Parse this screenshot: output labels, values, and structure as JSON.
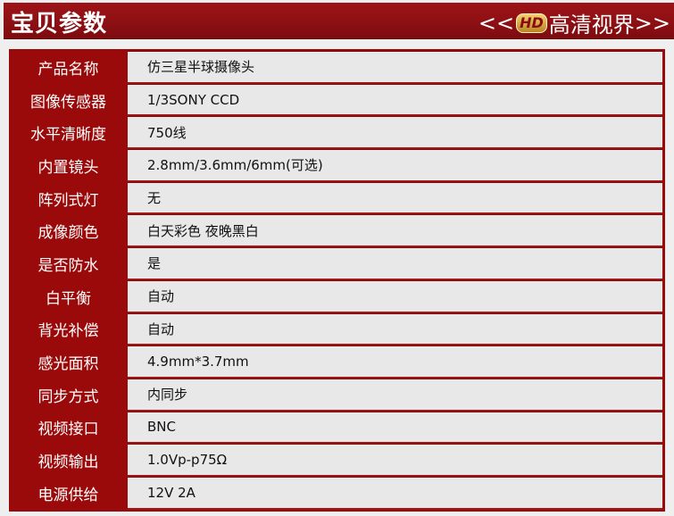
{
  "header": {
    "title": "宝贝参数",
    "slogan_left": "<<",
    "slogan_badge": "HD",
    "slogan_text": "高清视界",
    "slogan_right": ">>"
  },
  "colors": {
    "header_red": "#8b0f12",
    "label_red": "#9a0a0a",
    "cell_bg": "#e8e8e8"
  },
  "specs": [
    {
      "label": "产品名称",
      "value": "仿三星半球摄像头"
    },
    {
      "label": "图像传感器",
      "value": "1/3SONY CCD"
    },
    {
      "label": "水平清晰度",
      "value": "750线"
    },
    {
      "label": "内置镜头",
      "value": "2.8mm/3.6mm/6mm(可选)"
    },
    {
      "label": "阵列式灯",
      "value": "无"
    },
    {
      "label": "成像颜色",
      "value": "白天彩色 夜晚黑白"
    },
    {
      "label": "是否防水",
      "value": "是"
    },
    {
      "label": "白平衡",
      "value": "自动"
    },
    {
      "label": "背光补偿",
      "value": "自动"
    },
    {
      "label": "感光面积",
      "value": "4.9mm*3.7mm"
    },
    {
      "label": "同步方式",
      "value": "内同步"
    },
    {
      "label": "视频接口",
      "value": "BNC"
    },
    {
      "label": "视频输出",
      "value": "1.0Vp-p75Ω"
    },
    {
      "label": "电源供给",
      "value": "12V 2A"
    }
  ]
}
